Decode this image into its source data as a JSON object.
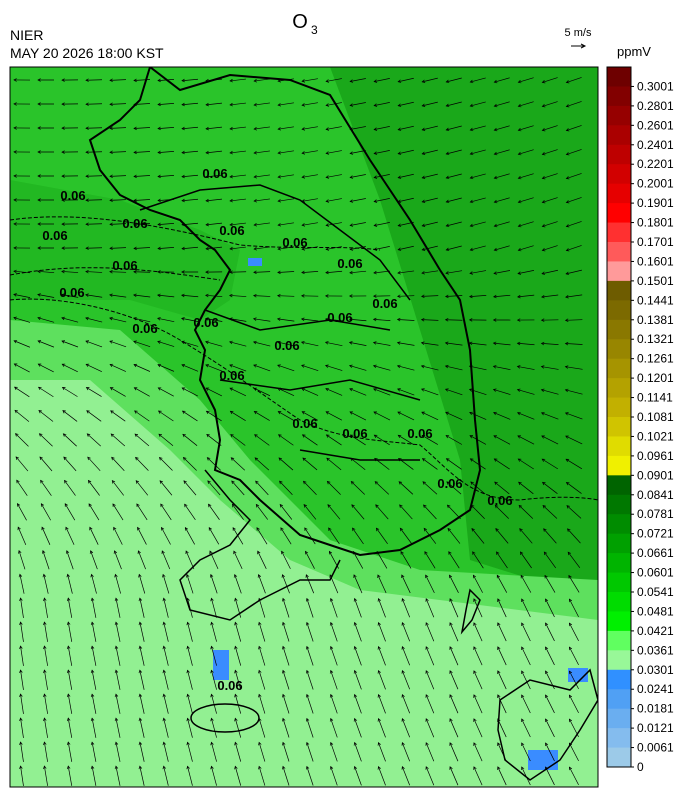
{
  "header": {
    "title": "O",
    "title_sub": "3",
    "agency": "NIER",
    "datetime": "MAY 20 2026 18:00 KST"
  },
  "wind_scale": {
    "label": "5 m/s"
  },
  "colorbar": {
    "unit": "ppmV",
    "ticks": [
      0.3001,
      0.2801,
      0.2601,
      0.2401,
      0.2201,
      0.2001,
      0.1901,
      0.1801,
      0.1701,
      0.1601,
      0.1501,
      0.1441,
      0.1381,
      0.1321,
      0.1261,
      0.1201,
      0.1141,
      0.1081,
      0.1021,
      0.0961,
      0.0901,
      0.0841,
      0.0781,
      0.0721,
      0.0661,
      0.0601,
      0.0541,
      0.0481,
      0.0421,
      0.0361,
      0.0301,
      0.0241,
      0.0181,
      0.0121,
      0.0061,
      0
    ],
    "colors": [
      "#6e0000",
      "#820000",
      "#960000",
      "#aa0000",
      "#be0000",
      "#d20000",
      "#e60000",
      "#ff0000",
      "#ff3030",
      "#ff5a5a",
      "#ff9a9a",
      "#6e5c00",
      "#7c6a00",
      "#8a7800",
      "#988600",
      "#a69400",
      "#b4a200",
      "#c2b000",
      "#d0c400",
      "#e0dc00",
      "#f0f000",
      "#006400",
      "#007800",
      "#008c00",
      "#00a000",
      "#00b400",
      "#00c800",
      "#00dc00",
      "#00f000",
      "#60ff60",
      "#98f898",
      "#3090ff",
      "#50a0f4",
      "#6aaef0",
      "#84bcee",
      "#9ccae8"
    ]
  },
  "contour_labels": [
    "0.06",
    "0.06",
    "0.06",
    "0.06",
    "0.06",
    "0.06",
    "0.06",
    "0.06",
    "0.06",
    "0.06",
    "0.06",
    "0.06",
    "0.06",
    "0.06",
    "0.06",
    "0.06",
    "0.06",
    "0.06",
    "0.06",
    "0.06",
    "0.06"
  ]
}
